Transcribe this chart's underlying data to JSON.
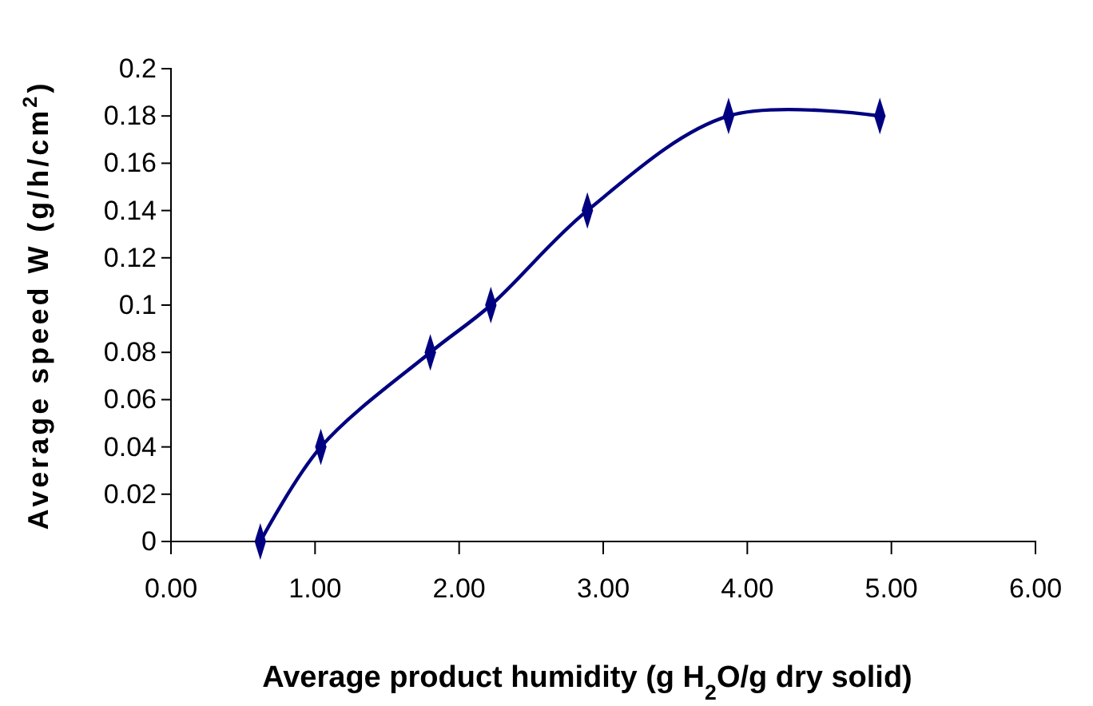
{
  "chart_data": {
    "type": "line",
    "xlabel": "Average product humidity (g H$_{2}$O/g dry solid)",
    "ylabel": "Average speed W (g/h/cm$^{2}$)",
    "x": [
      0.62,
      1.04,
      1.8,
      2.22,
      2.89,
      3.87,
      4.92
    ],
    "series": [
      {
        "color": "#000080",
        "values": [
          0,
          0.04,
          0.08,
          0.1,
          0.14,
          0.18,
          0.18
        ]
      }
    ],
    "xlim": [
      0,
      6
    ],
    "xticks": [
      {
        "value": 0,
        "label": "0.00"
      },
      {
        "value": 1,
        "label": "1.00"
      },
      {
        "value": 2,
        "label": "2.00"
      },
      {
        "value": 3,
        "label": "3.00"
      },
      {
        "value": 4,
        "label": "4.00"
      },
      {
        "value": 5,
        "label": "5.00"
      },
      {
        "value": 6,
        "label": "6.00"
      }
    ],
    "ylim": [
      0,
      0.2
    ],
    "yticks": [
      0,
      0.02,
      0.04,
      0.06,
      0.08,
      0.1,
      0.12,
      0.14,
      0.16,
      0.18,
      0.2
    ],
    "marker": "diamond",
    "line_style": "solid",
    "grid": false
  }
}
